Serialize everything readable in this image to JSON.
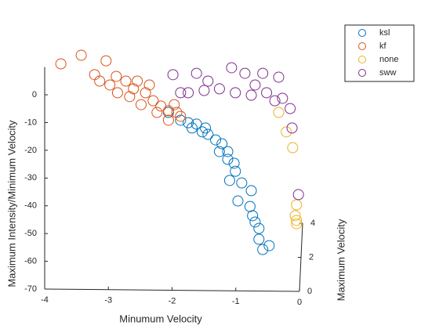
{
  "chart_data": {
    "type": "scatter3d",
    "xlabel": "Minumum Velocity",
    "ylabel": "Maximum Intensity/Minimum Velocity",
    "zlabel": "Maximum Velocity",
    "xlim": [
      -4,
      0
    ],
    "xticks": [
      -4,
      -3,
      -2,
      -1,
      0
    ],
    "ylim": [
      -70,
      10
    ],
    "yticks": [
      -70,
      -60,
      -50,
      -40,
      -30,
      -20,
      -10,
      0
    ],
    "zlim": [
      0,
      4
    ],
    "zticks": [
      0,
      2,
      4
    ],
    "legend": "top-right",
    "series": [
      {
        "name": "ksl",
        "color": "#0072BD",
        "x": [
          -2.06,
          -1.87,
          -1.75,
          -1.62,
          -1.53,
          -1.44,
          -1.32,
          -1.22,
          -1.13,
          -1.13,
          -1.03,
          -1.01,
          -1.1,
          -0.91,
          -0.76,
          -0.97,
          -0.78,
          -0.74,
          -0.7,
          -0.64,
          -0.64,
          -0.48,
          -0.58,
          -1.48,
          -1.69,
          -1.26
        ],
        "y": [
          -8.2,
          -11,
          -11.9,
          -12.4,
          -15.2,
          -16.1,
          -18.1,
          -19.5,
          -22.3,
          -25.1,
          -26.5,
          -29.4,
          -32.7,
          -33.6,
          -36.4,
          -40.1,
          -42.1,
          -45.4,
          -47.7,
          -50,
          -53.9,
          -56.2,
          -57.6,
          -13.8,
          -13.8,
          -22.3
        ],
        "z": [
          0.3,
          0.3,
          0.3,
          0.3,
          0.3,
          0.3,
          0.3,
          0.3,
          0.3,
          0.3,
          0.3,
          0.3,
          0.3,
          0.3,
          0.3,
          0.3,
          0.3,
          0.3,
          0.3,
          0.3,
          0.3,
          0.3,
          0.3,
          0.3,
          0.3,
          0.3
        ]
      },
      {
        "name": "kf",
        "color": "#D95319",
        "x": [
          -3.75,
          -3.43,
          -3.04,
          -3.22,
          -3.14,
          -2.88,
          -2.73,
          -2.55,
          -2.42,
          -2.3,
          -2.18,
          -2.06,
          -1.93,
          -1.87,
          -2.49,
          -2.67,
          -2.86,
          -2.98,
          -2.24,
          -2.06,
          -1.97,
          -2.36,
          -2.61
        ],
        "y": [
          9.3,
          12.4,
          10.4,
          5.4,
          3.1,
          4.8,
          3.1,
          3.1,
          -1.1,
          -4,
          -5.9,
          -7.6,
          -8.2,
          -9.6,
          -5.4,
          -2.5,
          -1.1,
          1.7,
          -8.2,
          -11,
          -5.4,
          1.7,
          0.3
        ],
        "z": [
          0.3,
          0.3,
          0.3,
          0.3,
          0.3,
          0.3,
          0.3,
          0.3,
          0.3,
          0.3,
          0.3,
          0.3,
          0.3,
          0.3,
          0.3,
          0.3,
          0.3,
          0.3,
          0.3,
          0.3,
          0.3,
          0.3,
          0.3
        ]
      },
      {
        "name": "none",
        "color": "#EDB120",
        "x": [
          -0.33,
          -0.21,
          -0.11,
          -0.05,
          -0.05,
          -0.07,
          -0.05
        ],
        "y": [
          -8.2,
          -15.2,
          -20.9,
          -41.5,
          -47.1,
          -45.4,
          -48.3
        ],
        "z": [
          0.3,
          0.3,
          0.3,
          0.3,
          0.3,
          0.3,
          0.3
        ]
      },
      {
        "name": "sww",
        "color": "#7E2F8E",
        "x": [
          -1.99,
          -1.62,
          -1.07,
          -0.86,
          -0.58,
          -0.33,
          -1.75,
          -1.5,
          -1.26,
          -1.01,
          -0.76,
          -0.52,
          -0.39,
          -0.27,
          -0.15,
          -0.12,
          -0.02,
          -1.44,
          -1.87,
          -0.7
        ],
        "y": [
          5.4,
          5.9,
          7.9,
          5.9,
          5.9,
          4.5,
          -1.1,
          -0.3,
          0.3,
          -1.1,
          -2,
          -1.1,
          -4,
          -3.1,
          -6.8,
          -13.8,
          -37.8,
          3.1,
          -1.1,
          1.7
        ],
        "z": [
          0.3,
          0.3,
          0.3,
          0.3,
          0.3,
          0.3,
          0.3,
          0.3,
          0.3,
          0.3,
          0.3,
          0.3,
          0.3,
          0.3,
          0.3,
          0.3,
          0.3,
          0.3,
          0.3,
          0.3
        ]
      }
    ]
  }
}
